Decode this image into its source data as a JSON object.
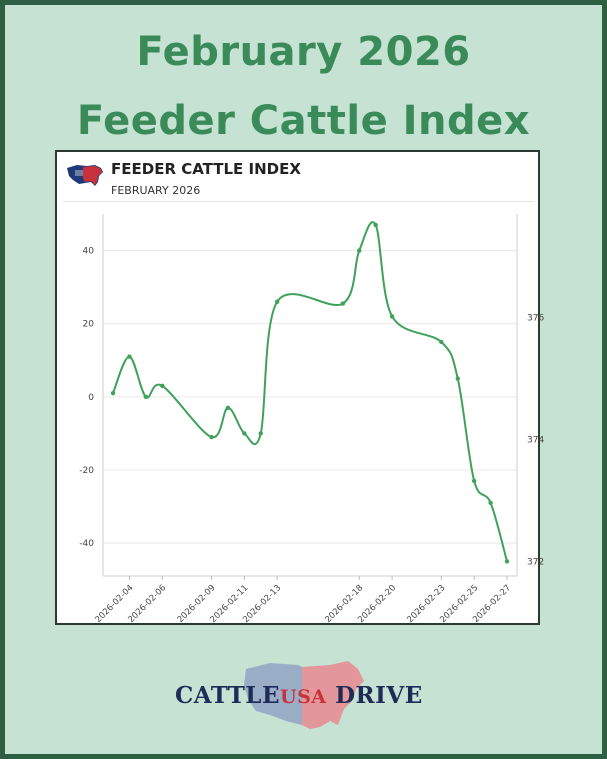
{
  "poster": {
    "headline_line1": "February 2026",
    "headline_line2": "Feeder Cattle Index"
  },
  "card": {
    "title": "FEEDER CATTLE INDEX",
    "subtitle": "FEBRUARY 2026"
  },
  "brand": {
    "word1": "CATTLE",
    "word2": "USA",
    "word3": " DRIVE"
  },
  "colors": {
    "background": "#c5e2d2",
    "headline": "#3a8a5a",
    "line": "#3fa15a",
    "brand_navy": "#1f2c58",
    "brand_red": "#c8323c"
  },
  "chart_data": {
    "type": "line",
    "x": [
      "2026-02-03",
      "2026-02-04",
      "2026-02-05",
      "2026-02-06",
      "2026-02-09",
      "2026-02-10",
      "2026-02-11",
      "2026-02-12",
      "2026-02-13",
      "2026-02-17",
      "2026-02-18",
      "2026-02-19",
      "2026-02-20",
      "2026-02-23",
      "2026-02-24",
      "2026-02-25",
      "2026-02-26",
      "2026-02-27"
    ],
    "x_tick_labels": [
      "2026-02-04",
      "2026-02-06",
      "2026-02-09",
      "2026-02-11",
      "2026-02-13",
      "2026-02-18",
      "2026-02-20",
      "2026-02-23",
      "2026-02-25",
      "2026-02-27"
    ],
    "y_left_ticks": [
      -40,
      -20,
      0,
      20,
      40
    ],
    "y_right_ticks": [
      372,
      374,
      376
    ],
    "series": [
      {
        "values": [
          1,
          11,
          0,
          3,
          -11,
          -3,
          -10,
          -10,
          26,
          25.5,
          40,
          47,
          22,
          15,
          5,
          -23,
          -29,
          -45
        ]
      }
    ],
    "ylim_left": [
      -49,
      50
    ],
    "grid": true
  }
}
